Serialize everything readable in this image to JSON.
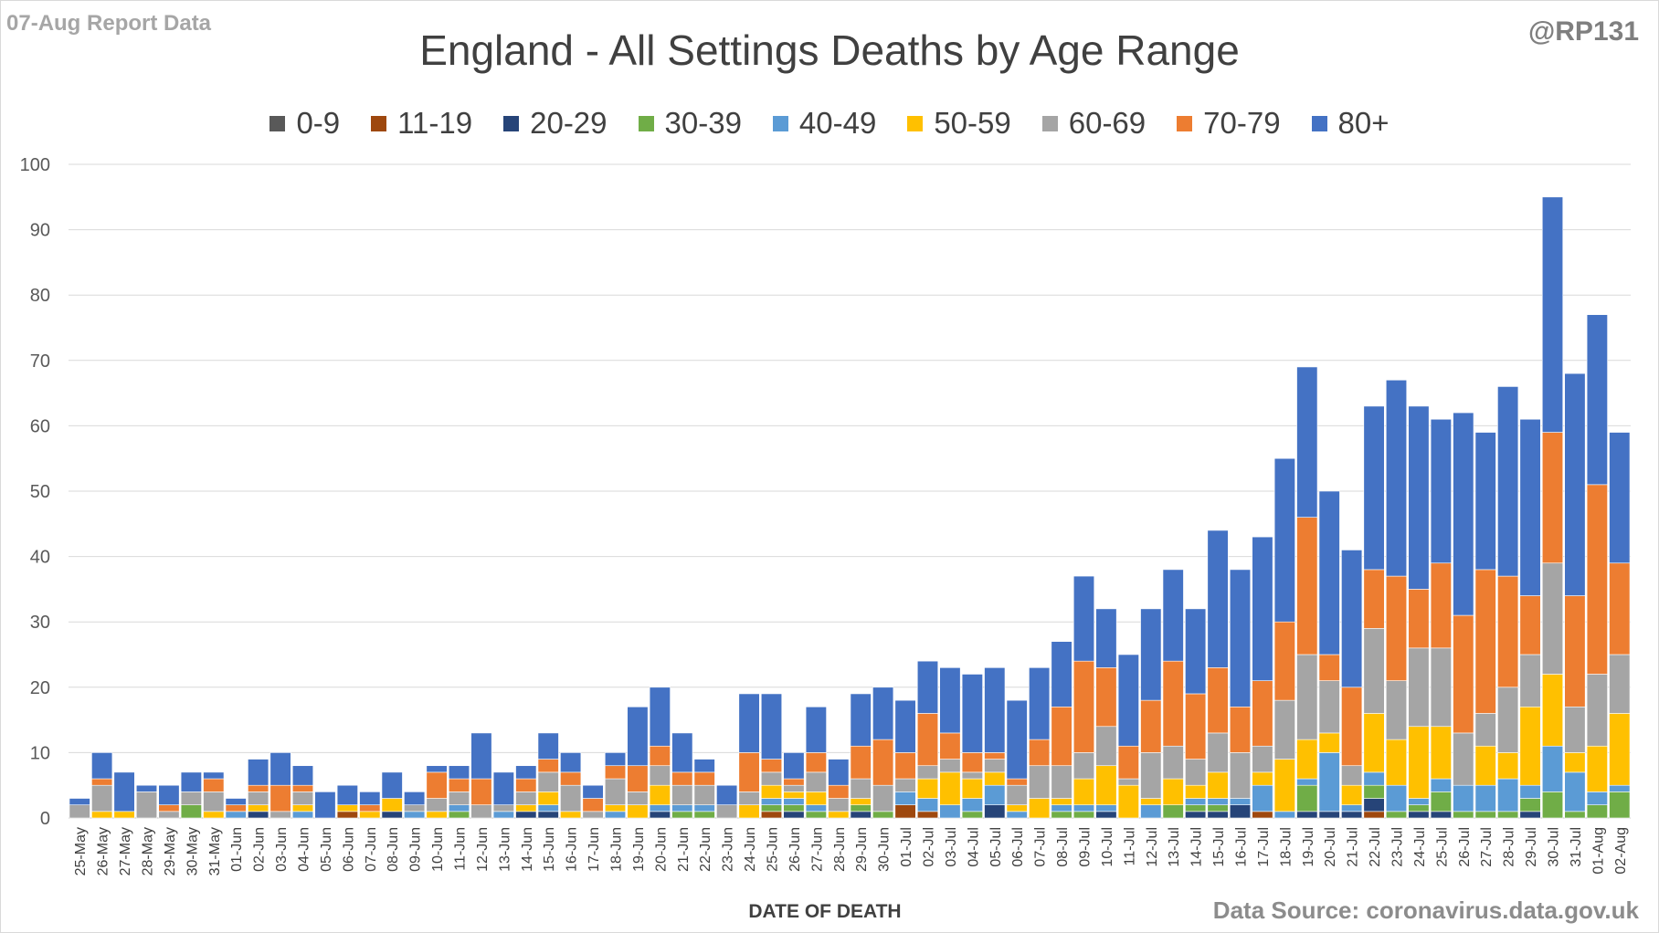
{
  "header": {
    "report_label": "07-Aug Report Data",
    "handle": "@RP131",
    "source": "Data Source: coronavirus.data.gov.uk"
  },
  "chart_data": {
    "type": "bar",
    "stacked": true,
    "title": "England - All Settings Deaths by Age Range",
    "xlabel": "DATE OF DEATH",
    "ylabel": "",
    "ylim": [
      0,
      100
    ],
    "yticks": [
      0,
      10,
      20,
      30,
      40,
      50,
      60,
      70,
      80,
      90,
      100
    ],
    "grid": true,
    "legend_position": "top",
    "categories": [
      "25-May",
      "26-May",
      "27-May",
      "28-May",
      "29-May",
      "30-May",
      "31-May",
      "01-Jun",
      "02-Jun",
      "03-Jun",
      "04-Jun",
      "05-Jun",
      "06-Jun",
      "07-Jun",
      "08-Jun",
      "09-Jun",
      "10-Jun",
      "11-Jun",
      "12-Jun",
      "13-Jun",
      "14-Jun",
      "15-Jun",
      "16-Jun",
      "17-Jun",
      "18-Jun",
      "19-Jun",
      "20-Jun",
      "21-Jun",
      "22-Jun",
      "23-Jun",
      "24-Jun",
      "25-Jun",
      "26-Jun",
      "27-Jun",
      "28-Jun",
      "29-Jun",
      "30-Jun",
      "01-Jul",
      "02-Jul",
      "03-Jul",
      "04-Jul",
      "05-Jul",
      "06-Jul",
      "07-Jul",
      "08-Jul",
      "09-Jul",
      "10-Jul",
      "11-Jul",
      "12-Jul",
      "13-Jul",
      "14-Jul",
      "15-Jul",
      "16-Jul",
      "17-Jul",
      "18-Jul",
      "19-Jul",
      "20-Jul",
      "21-Jul",
      "22-Jul",
      "23-Jul",
      "24-Jul",
      "25-Jul",
      "26-Jul",
      "27-Jul",
      "28-Jul",
      "29-Jul",
      "30-Jul",
      "31-Jul",
      "01-Aug",
      "02-Aug"
    ],
    "series": [
      {
        "name": "0-9",
        "color": "#595959",
        "values": [
          0,
          0,
          0,
          0,
          0,
          0,
          0,
          0,
          0,
          0,
          0,
          0,
          0,
          0,
          0,
          0,
          0,
          0,
          0,
          0,
          0,
          0,
          0,
          0,
          0,
          0,
          0,
          0,
          0,
          0,
          0,
          0,
          0,
          0,
          0,
          0,
          0,
          0,
          0,
          0,
          0,
          0,
          0,
          0,
          0,
          0,
          0,
          0,
          0,
          0,
          0,
          0,
          0,
          0,
          0,
          0,
          0,
          0,
          0,
          0,
          0,
          0,
          0,
          0,
          0,
          0,
          0,
          0,
          0,
          0
        ]
      },
      {
        "name": "11-19",
        "color": "#9e480e",
        "values": [
          0,
          0,
          0,
          0,
          0,
          0,
          0,
          0,
          0,
          0,
          0,
          0,
          1,
          0,
          0,
          0,
          0,
          0,
          0,
          0,
          0,
          0,
          0,
          0,
          0,
          0,
          0,
          0,
          0,
          0,
          0,
          1,
          0,
          0,
          0,
          0,
          0,
          2,
          1,
          0,
          0,
          0,
          0,
          0,
          0,
          0,
          0,
          0,
          0,
          0,
          0,
          0,
          0,
          1,
          0,
          0,
          0,
          0,
          1,
          0,
          0,
          0,
          0,
          0,
          0,
          0,
          0,
          0,
          0,
          0
        ]
      },
      {
        "name": "20-29",
        "color": "#264478",
        "values": [
          0,
          0,
          0,
          0,
          0,
          0,
          0,
          0,
          1,
          0,
          0,
          0,
          0,
          0,
          1,
          0,
          0,
          0,
          0,
          0,
          1,
          1,
          0,
          0,
          0,
          0,
          1,
          0,
          0,
          0,
          0,
          0,
          1,
          0,
          0,
          1,
          0,
          0,
          0,
          0,
          0,
          2,
          0,
          0,
          0,
          0,
          1,
          0,
          0,
          0,
          1,
          1,
          2,
          0,
          0,
          1,
          1,
          1,
          2,
          0,
          1,
          1,
          0,
          0,
          0,
          1,
          0,
          0,
          0,
          0
        ]
      },
      {
        "name": "30-39",
        "color": "#70ad47",
        "values": [
          0,
          0,
          0,
          0,
          0,
          2,
          0,
          0,
          0,
          0,
          0,
          0,
          0,
          0,
          0,
          0,
          0,
          1,
          0,
          0,
          0,
          0,
          0,
          0,
          0,
          0,
          0,
          1,
          1,
          0,
          0,
          1,
          1,
          1,
          0,
          1,
          1,
          0,
          0,
          0,
          1,
          0,
          0,
          0,
          1,
          1,
          0,
          0,
          0,
          2,
          1,
          1,
          0,
          0,
          0,
          4,
          0,
          0,
          2,
          1,
          1,
          3,
          1,
          1,
          1,
          2,
          4,
          1,
          2,
          4
        ]
      },
      {
        "name": "40-49",
        "color": "#5b9bd5",
        "values": [
          0,
          0,
          0,
          0,
          0,
          0,
          0,
          1,
          0,
          0,
          1,
          0,
          0,
          0,
          0,
          1,
          0,
          1,
          0,
          1,
          0,
          1,
          0,
          0,
          1,
          0,
          1,
          1,
          1,
          0,
          0,
          1,
          1,
          1,
          0,
          0,
          0,
          2,
          2,
          2,
          2,
          3,
          1,
          0,
          1,
          1,
          1,
          0,
          2,
          0,
          1,
          1,
          1,
          4,
          1,
          1,
          9,
          1,
          2,
          4,
          1,
          2,
          4,
          4,
          5,
          2,
          7,
          6,
          2,
          1
        ]
      },
      {
        "name": "50-59",
        "color": "#ffc000",
        "values": [
          0,
          1,
          1,
          0,
          0,
          0,
          1,
          0,
          1,
          0,
          1,
          0,
          1,
          1,
          2,
          0,
          1,
          0,
          0,
          0,
          1,
          2,
          1,
          0,
          1,
          2,
          3,
          0,
          0,
          0,
          2,
          2,
          1,
          2,
          1,
          1,
          0,
          0,
          3,
          5,
          3,
          2,
          1,
          3,
          1,
          4,
          6,
          5,
          1,
          4,
          2,
          4,
          0,
          2,
          8,
          6,
          3,
          3,
          9,
          7,
          11,
          8,
          0,
          6,
          4,
          12,
          11,
          3,
          7,
          11
        ]
      },
      {
        "name": "60-69",
        "color": "#a5a5a5",
        "values": [
          2,
          4,
          0,
          4,
          1,
          2,
          3,
          0,
          2,
          1,
          2,
          0,
          0,
          0,
          0,
          1,
          2,
          2,
          2,
          1,
          2,
          3,
          4,
          1,
          4,
          2,
          3,
          3,
          3,
          2,
          2,
          2,
          1,
          3,
          2,
          3,
          4,
          2,
          2,
          2,
          1,
          2,
          3,
          5,
          5,
          4,
          6,
          1,
          7,
          5,
          4,
          6,
          7,
          4,
          9,
          13,
          8,
          3,
          13,
          9,
          12,
          12,
          8,
          5,
          10,
          8,
          17,
          7,
          11,
          9
        ]
      },
      {
        "name": "70-79",
        "color": "#ed7d31",
        "values": [
          0,
          1,
          0,
          0,
          1,
          0,
          2,
          1,
          1,
          4,
          1,
          0,
          0,
          1,
          0,
          0,
          4,
          2,
          4,
          0,
          2,
          2,
          2,
          2,
          2,
          4,
          3,
          2,
          2,
          0,
          6,
          2,
          1,
          3,
          2,
          5,
          7,
          4,
          8,
          4,
          3,
          1,
          1,
          4,
          9,
          14,
          9,
          5,
          8,
          13,
          10,
          10,
          7,
          10,
          12,
          21,
          4,
          12,
          9,
          16,
          9,
          13,
          18,
          22,
          17,
          9,
          20,
          17,
          29,
          14
        ]
      },
      {
        "name": "80+",
        "color": "#4472c4",
        "values": [
          1,
          4,
          6,
          1,
          3,
          3,
          1,
          1,
          4,
          5,
          3,
          4,
          3,
          2,
          4,
          2,
          1,
          2,
          7,
          5,
          2,
          4,
          3,
          2,
          2,
          9,
          9,
          6,
          2,
          3,
          9,
          10,
          4,
          7,
          4,
          8,
          8,
          8,
          8,
          10,
          12,
          13,
          12,
          11,
          10,
          13,
          9,
          14,
          14,
          14,
          13,
          21,
          21,
          22,
          25,
          23,
          25,
          21,
          25,
          30,
          28,
          22,
          31,
          21,
          29,
          27,
          36,
          34,
          26,
          20
        ]
      }
    ]
  }
}
